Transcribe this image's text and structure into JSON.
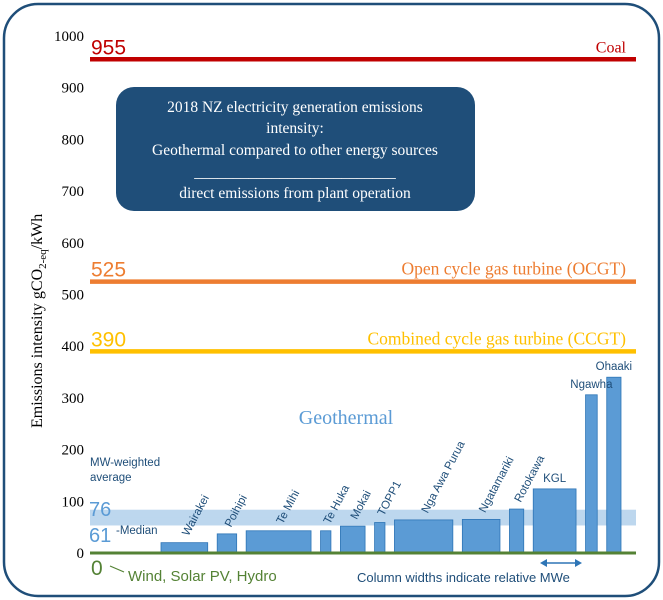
{
  "chart_data": {
    "type": "bar",
    "title_box": {
      "line1": "2018 NZ electricity generation emissions",
      "line2": "intensity:",
      "line3": "Geothermal compared to other energy sources",
      "rule": "__________________________",
      "line4": "direct emissions from plant operation"
    },
    "ylabel_main": "Emissions intensity   gCO",
    "ylabel_sub": "2-eq",
    "ylabel_unit": "/kWh",
    "ylim": [
      0,
      1000
    ],
    "yticks": [
      0,
      100,
      200,
      300,
      400,
      500,
      600,
      700,
      800,
      900,
      1000
    ],
    "reference_lines": [
      {
        "value": 955,
        "value_label": "955",
        "label": "Coal",
        "color": "#c00000"
      },
      {
        "value": 525,
        "value_label": "525",
        "label": "Open cycle gas turbine (OCGT)",
        "color": "#ed7d31"
      },
      {
        "value": 390,
        "value_label": "390",
        "label": "Combined cycle gas turbine (CCGT)",
        "color": "#ffc000"
      },
      {
        "value": 0,
        "value_label": "0",
        "label": "Wind, Solar PV, Hydro",
        "color": "#548235"
      }
    ],
    "geothermal_label": "Geothermal",
    "average": {
      "value": 76,
      "value_label": "76",
      "label_line1": "MW-weighted",
      "label_line2": "average"
    },
    "median": {
      "value": 61,
      "value_label": "61",
      "label": "-Median"
    },
    "categories": [
      "Wairakei",
      "Poihipi",
      "Te Mihi",
      "Te Huka",
      "Mokai",
      "TOPP1",
      "Nga Awa Purua",
      "Ngatamariki",
      "Rotokawa",
      "KGL",
      "Ngawha",
      "Ohaaki"
    ],
    "values": [
      20,
      37,
      43,
      43,
      52,
      59,
      64,
      65,
      85,
      124,
      306,
      340
    ],
    "relative_widths": [
      3.6,
      1.5,
      5.0,
      0.8,
      1.9,
      0.8,
      4.5,
      2.9,
      1.1,
      3.3,
      0.9,
      1.1
    ],
    "width_note": "Column widths indicate relative MWe",
    "colors": {
      "bar": "#5b9bd5",
      "bar_edge": "#2e75b6",
      "band": "#bdd7ee",
      "title_box": "#1f4e79",
      "frame": "#1f4e79",
      "geothermal_text": "#5b9bd5",
      "note_text": "#1f4e79"
    }
  }
}
